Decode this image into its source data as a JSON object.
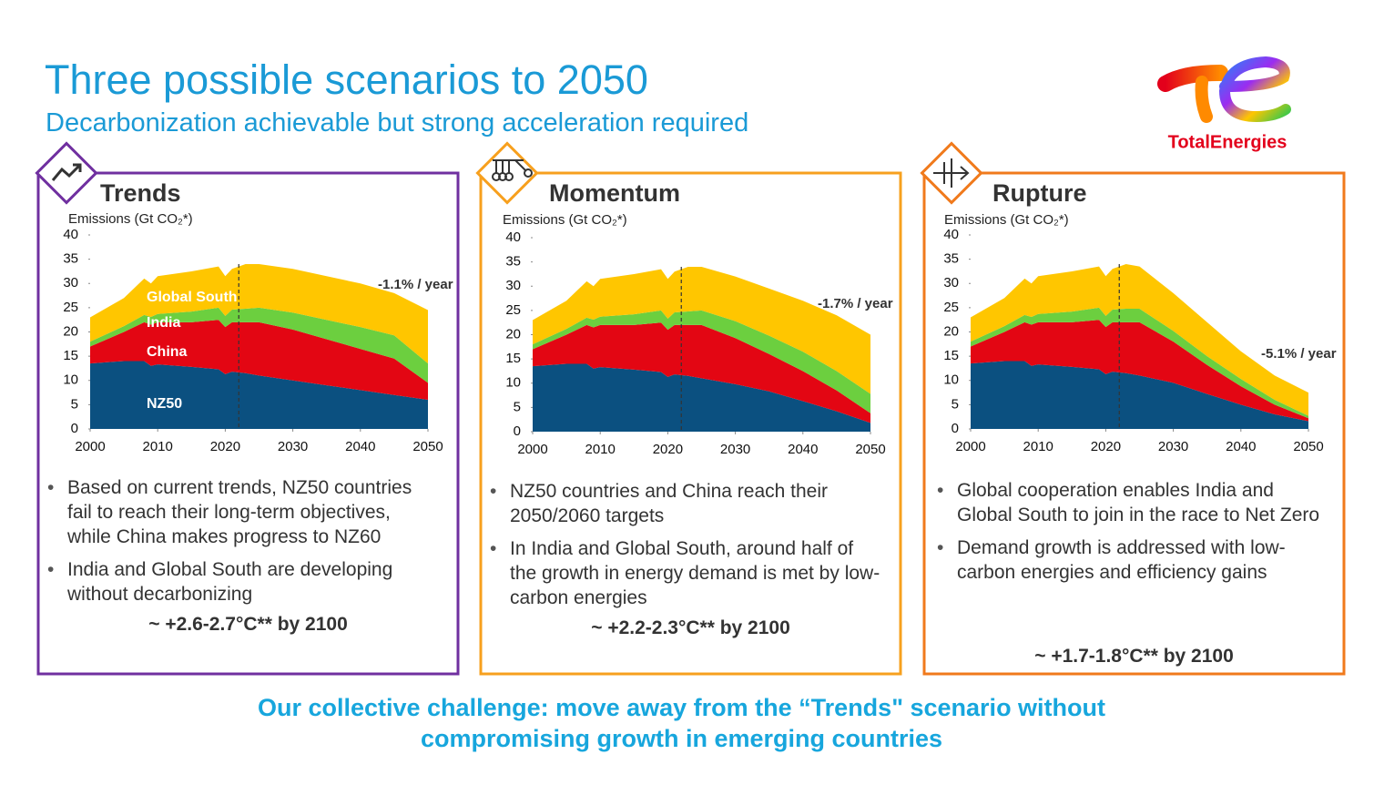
{
  "header": {
    "title": "Three possible scenarios to 2050",
    "subtitle": "Decarbonization achievable but strong acceleration required"
  },
  "logo": {
    "text": "TotalEnergies"
  },
  "chart_data": [
    {
      "type": "area",
      "stacked": true,
      "title": "Trends",
      "y_label": "Emissions (Gt CO₂*)",
      "annotation": "-1.1% / year",
      "x": [
        2000,
        2005,
        2008,
        2009,
        2010,
        2015,
        2019,
        2020,
        2021,
        2023,
        2025,
        2030,
        2035,
        2040,
        2045,
        2050
      ],
      "series": [
        {
          "name": "NZ50",
          "color": "#0b5080",
          "values": [
            13.5,
            14,
            14,
            13,
            13.3,
            12.8,
            12.3,
            11.3,
            11.8,
            11.5,
            11,
            10,
            9,
            8,
            7,
            6
          ]
        },
        {
          "name": "China",
          "color": "#e30613",
          "values": [
            3.5,
            6,
            8,
            8.5,
            8.7,
            9.2,
            10.2,
            9.7,
            10.2,
            10.5,
            11,
            10.5,
            9.5,
            8.5,
            7.5,
            3.5
          ]
        },
        {
          "name": "India",
          "color": "#6ccf3f",
          "values": [
            1,
            1.2,
            1.5,
            1.6,
            1.7,
            2.2,
            2.5,
            2.3,
            2.6,
            2.8,
            3,
            3.5,
            4,
            4.5,
            4.8,
            4
          ]
        },
        {
          "name": "Global South",
          "color": "#ffc600",
          "values": [
            5,
            5.8,
            7.5,
            6.9,
            7.8,
            8.3,
            8.5,
            8.2,
            8.4,
            9.2,
            9,
            9,
            9,
            9,
            8.7,
            11
          ]
        }
      ],
      "xlim": [
        2000,
        2050
      ],
      "ylim": [
        0,
        40
      ],
      "xticks": [
        2000,
        2010,
        2020,
        2030,
        2040,
        2050
      ],
      "yticks": [
        0,
        5,
        10,
        15,
        20,
        25,
        30,
        35,
        40
      ],
      "projection_start": 2022
    },
    {
      "type": "area",
      "stacked": true,
      "title": "Momentum",
      "y_label": "Emissions (Gt CO₂*)",
      "annotation": "-1.7% / year",
      "x": [
        2000,
        2005,
        2008,
        2009,
        2010,
        2015,
        2019,
        2020,
        2021,
        2023,
        2025,
        2030,
        2035,
        2040,
        2045,
        2050
      ],
      "series": [
        {
          "color": "#0b5080",
          "values": [
            13.5,
            14,
            14,
            13,
            13.3,
            12.8,
            12.3,
            11.3,
            11.8,
            11.5,
            11,
            9.8,
            8.3,
            6.3,
            4.2,
            1.8
          ]
        },
        {
          "color": "#e30613",
          "values": [
            3.5,
            6,
            8,
            8.5,
            8.7,
            9.2,
            10.2,
            9.7,
            10.2,
            10.5,
            11,
            9.5,
            7.7,
            6.2,
            4.3,
            2
          ]
        },
        {
          "color": "#6ccf3f",
          "values": [
            1,
            1.2,
            1.5,
            1.6,
            1.7,
            2.2,
            2.5,
            2.3,
            2.6,
            2.8,
            3,
            3.5,
            3.8,
            4,
            4,
            4
          ]
        },
        {
          "color": "#ffc600",
          "values": [
            5,
            5.8,
            7.5,
            6.9,
            7.8,
            8.3,
            8.5,
            8.2,
            8.4,
            9.2,
            9,
            9.2,
            9.7,
            10.5,
            11.5,
            12.2
          ]
        }
      ],
      "xlim": [
        2000,
        2050
      ],
      "ylim": [
        0,
        40
      ],
      "xticks": [
        2000,
        2010,
        2020,
        2030,
        2040,
        2050
      ],
      "yticks": [
        0,
        5,
        10,
        15,
        20,
        25,
        30,
        35,
        40
      ],
      "projection_start": 2022
    },
    {
      "type": "area",
      "stacked": true,
      "title": "Rupture",
      "y_label": "Emissions (Gt CO₂*)",
      "annotation": "-5.1% / year",
      "x": [
        2000,
        2005,
        2008,
        2009,
        2010,
        2015,
        2019,
        2020,
        2021,
        2023,
        2025,
        2030,
        2035,
        2040,
        2045,
        2050
      ],
      "series": [
        {
          "color": "#0b5080",
          "values": [
            13.5,
            14,
            14,
            13,
            13.3,
            12.8,
            12.3,
            11.3,
            11.8,
            11.5,
            11,
            9.5,
            7.2,
            5,
            3,
            1.6
          ]
        },
        {
          "color": "#e30613",
          "values": [
            3.5,
            6,
            8,
            8.5,
            8.7,
            9.2,
            10.2,
            9.7,
            10.2,
            10.5,
            11,
            8.5,
            6,
            3.8,
            2,
            0.6
          ]
        },
        {
          "color": "#6ccf3f",
          "values": [
            1,
            1.2,
            1.5,
            1.6,
            1.7,
            2.2,
            2.5,
            2.3,
            2.6,
            2.8,
            2.8,
            2.2,
            1.8,
            1.5,
            1,
            0.5
          ]
        },
        {
          "color": "#ffc600",
          "values": [
            5,
            5.8,
            7.5,
            6.9,
            7.8,
            8.3,
            8.5,
            8.2,
            8.4,
            9.2,
            8.7,
            7.8,
            7,
            5.7,
            5,
            4.8
          ]
        }
      ],
      "xlim": [
        2000,
        2050
      ],
      "ylim": [
        0,
        40
      ],
      "xticks": [
        2000,
        2010,
        2020,
        2030,
        2040,
        2050
      ],
      "yticks": [
        0,
        5,
        10,
        15,
        20,
        25,
        30,
        35,
        40
      ],
      "projection_start": 2022
    }
  ],
  "panels": [
    {
      "bullets": [
        "Based on current trends, NZ50 countries fail to reach their long-term objectives, while China makes progress to NZ60",
        "India and Global South are developing without decarbonizing"
      ],
      "temperature": "~ +2.6-2.7°C** by 2100"
    },
    {
      "bullets": [
        "NZ50 countries and China reach their 2050/2060 targets",
        "In India and Global South, around half of the growth in energy demand is met by low-carbon energies"
      ],
      "temperature": "~ +2.2-2.3°C** by 2100"
    },
    {
      "bullets": [
        "Global cooperation enables India and Global South to join in the race to Net Zero",
        "Demand growth is addressed with low-carbon energies and efficiency gains"
      ],
      "temperature": "~ +1.7-1.8°C** by 2100"
    }
  ],
  "footer": {
    "lines": [
      "Our collective challenge: move away from the “Trends\" scenario without",
      "compromising growth in emerging countries"
    ]
  }
}
